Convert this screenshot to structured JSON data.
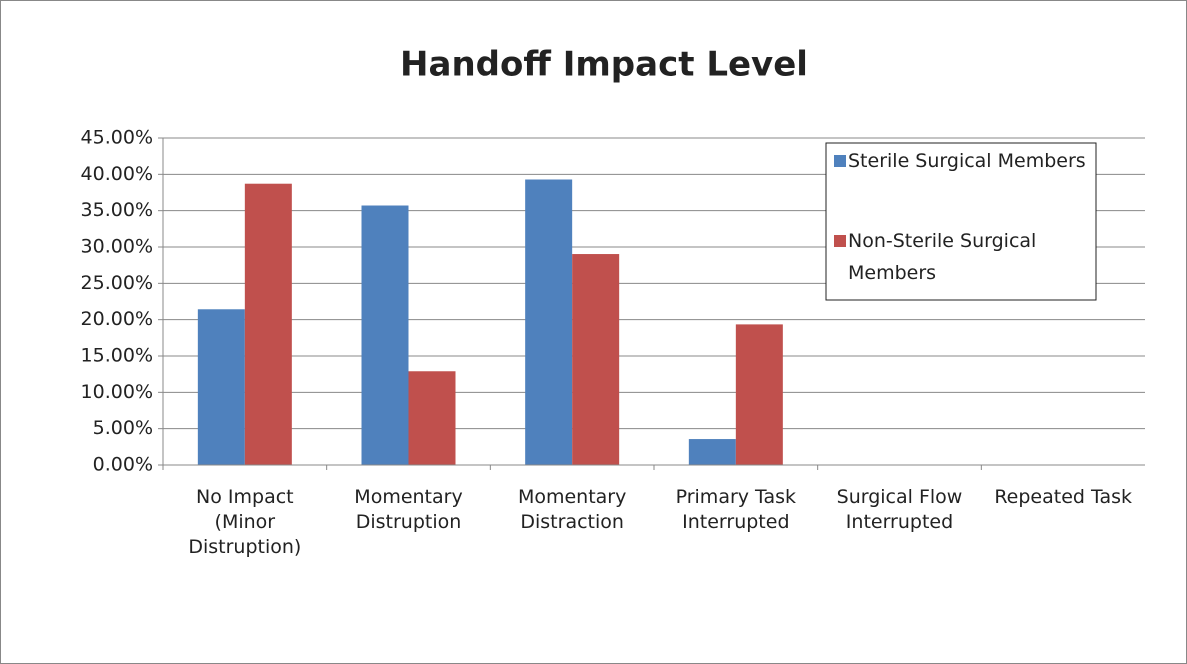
{
  "chart_data": {
    "type": "bar",
    "title": "Handoff Impact Level",
    "categories": [
      "No Impact (Minor Distruption)",
      "Momentary Distruption",
      "Momentary Distraction",
      "Primary Task Interrupted",
      "Surgical Flow Interrupted",
      "Repeated Task"
    ],
    "series": [
      {
        "name": "Sterile Surgical Members",
        "color": "#4f81bd",
        "values": [
          21.43,
          35.71,
          39.29,
          3.57,
          0,
          0
        ]
      },
      {
        "name": "Non-Sterile Surgical Members",
        "color": "#c0504d",
        "values": [
          38.71,
          12.9,
          29.03,
          19.35,
          0,
          0
        ]
      }
    ],
    "ylim": [
      0,
      45
    ],
    "yticks": [
      {
        "value": 0,
        "label": "0.00%"
      },
      {
        "value": 5,
        "label": "5.00%"
      },
      {
        "value": 10,
        "label": "10.00%"
      },
      {
        "value": 15,
        "label": "15.00%"
      },
      {
        "value": 20,
        "label": "20.00%"
      },
      {
        "value": 25,
        "label": "25.00%"
      },
      {
        "value": 30,
        "label": "30.00%"
      },
      {
        "value": 35,
        "label": "35.00%"
      },
      {
        "value": 40,
        "label": "40.00%"
      },
      {
        "value": 45,
        "label": "45.00%"
      }
    ],
    "grid": true,
    "legend": "upper right"
  }
}
